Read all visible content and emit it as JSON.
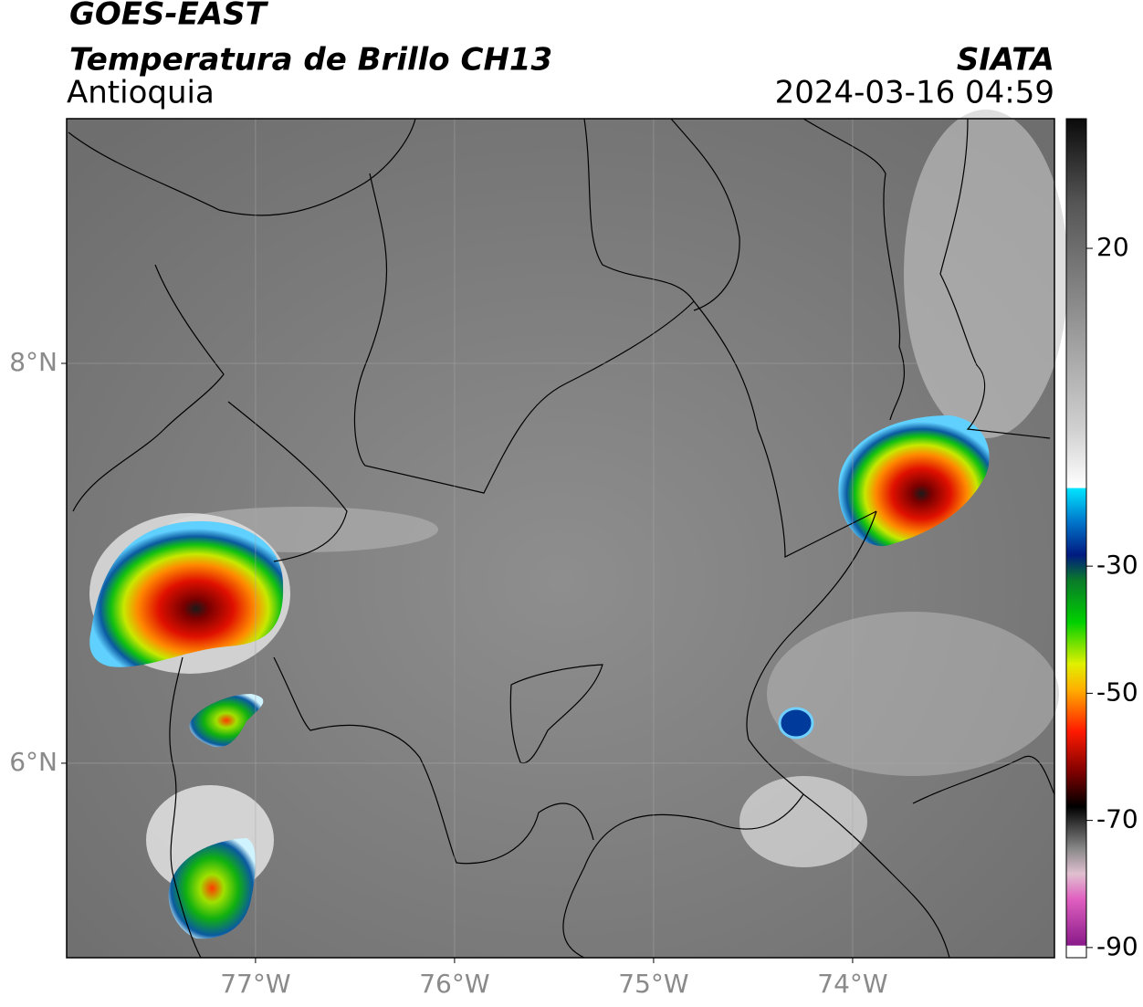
{
  "header": {
    "satellite": "GOES-EAST",
    "product": "Temperatura de Brillo CH13",
    "region": "Antioquia",
    "source": "SIATA",
    "datetime": "2024-03-16 04:59"
  },
  "map": {
    "xlim": [
      -77.949,
      -72.986
    ],
    "ylim": [
      5.027,
      9.224
    ],
    "xticks": [
      {
        "value": -77,
        "label": "77°W"
      },
      {
        "value": -76,
        "label": "76°W"
      },
      {
        "value": -75,
        "label": "75°W"
      },
      {
        "value": -74,
        "label": "74°W"
      }
    ],
    "yticks": [
      {
        "value": 8,
        "label": "8°N"
      },
      {
        "value": 6,
        "label": "6°N"
      }
    ],
    "grid": true
  },
  "colorbar": {
    "lim": [
      -91.6,
      40.4
    ],
    "ticks": [
      20,
      -30,
      -50,
      -70,
      -90
    ]
  }
}
